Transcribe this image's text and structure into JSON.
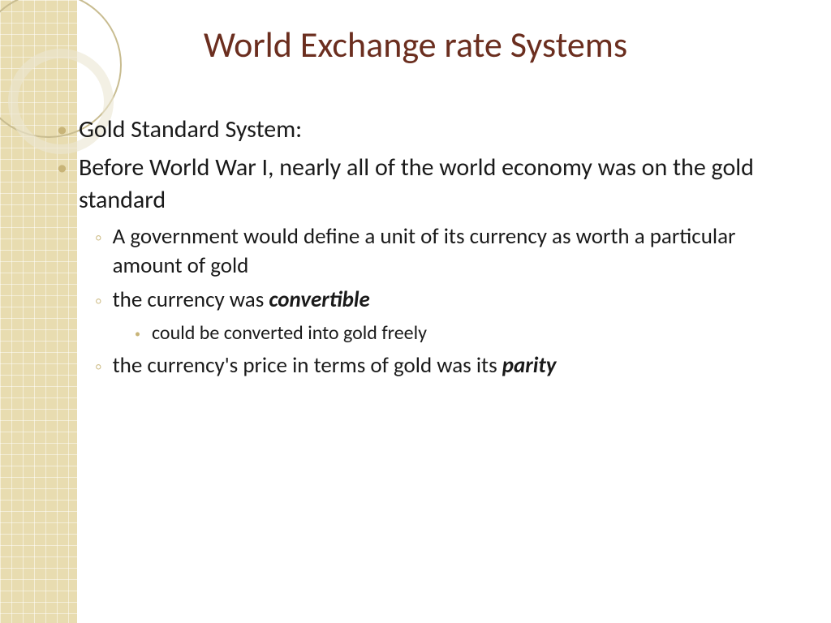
{
  "slide": {
    "title": "World Exchange rate Systems",
    "title_color": "#6b2e1f",
    "title_fontsize": 44,
    "background_color": "#ffffff",
    "sidebar_color": "#e8dcb0",
    "bullet_color": "#c8b478",
    "text_color": "#1a1a1a",
    "body_fontsize_l1": 30,
    "body_fontsize_l2": 27,
    "body_fontsize_l3": 24,
    "bullets": [
      {
        "level": 1,
        "text": "Gold Standard System:"
      },
      {
        "level": 1,
        "text": "Before World War I, nearly all of the world economy was on the gold standard"
      },
      {
        "level": 2,
        "text": "A government would define a unit of its currency as worth a particular amount of gold"
      },
      {
        "level": 2,
        "text_pre": "the currency was ",
        "text_em": "convertible"
      },
      {
        "level": 3,
        "text": "could be converted into gold freely"
      },
      {
        "level": 2,
        "text_pre": "the currency's price in terms of gold was its ",
        "text_em": "parity"
      }
    ]
  }
}
